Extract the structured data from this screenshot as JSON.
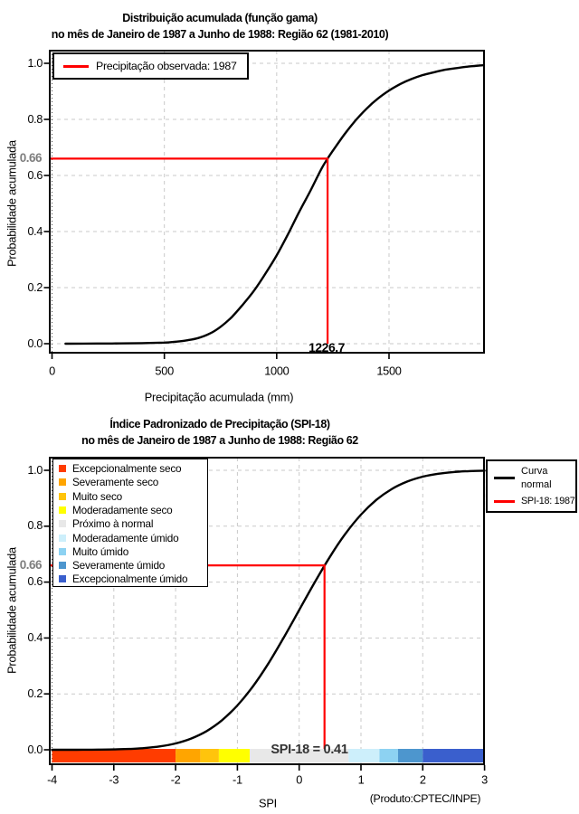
{
  "figure": {
    "credit": "(Produto:CPTEC/INPE)"
  },
  "chart_data": [
    {
      "type": "line",
      "title": "Distribuição acumulada (função gama)",
      "subtitle": "no mês de Janeiro de 1987 a Junho de 1988: Região 62 (1981-2010)",
      "xlabel": "Precipitação acumulada (mm)",
      "ylabel": "Probabilidade acumulada",
      "xlim": [
        0,
        1920
      ],
      "ylim": [
        0,
        1
      ],
      "x_ticks": [
        "0",
        "500",
        "1000",
        "1500"
      ],
      "x_tick_values": [
        0,
        500,
        1000,
        1500
      ],
      "y_ticks": [
        "0.0",
        "0.2",
        "0.4",
        "0.6",
        "0.8",
        "1.0"
      ],
      "y_tick_values": [
        0,
        0.2,
        0.4,
        0.6,
        0.8,
        1.0
      ],
      "grid": true,
      "legend_position": "top-left",
      "legend": [
        {
          "label": "Precipitação observada: 1987",
          "color": "#FF0000",
          "swatch": "line"
        }
      ],
      "series": [
        {
          "name": "Distribuição acumulada (função gama)",
          "color": "#000000",
          "points": [
            [
              60,
              0
            ],
            [
              200,
              0.0005
            ],
            [
              300,
              0.001
            ],
            [
              400,
              0.002
            ],
            [
              500,
              0.004
            ],
            [
              550,
              0.007
            ],
            [
              600,
              0.012
            ],
            [
              650,
              0.02
            ],
            [
              700,
              0.035
            ],
            [
              750,
              0.06
            ],
            [
              800,
              0.095
            ],
            [
              850,
              0.14
            ],
            [
              900,
              0.19
            ],
            [
              950,
              0.25
            ],
            [
              1000,
              0.315
            ],
            [
              1050,
              0.39
            ],
            [
              1100,
              0.47
            ],
            [
              1150,
              0.545
            ],
            [
              1200,
              0.625
            ],
            [
              1226.7,
              0.66
            ],
            [
              1250,
              0.688
            ],
            [
              1300,
              0.745
            ],
            [
              1350,
              0.795
            ],
            [
              1400,
              0.838
            ],
            [
              1450,
              0.874
            ],
            [
              1500,
              0.903
            ],
            [
              1550,
              0.926
            ],
            [
              1600,
              0.944
            ],
            [
              1650,
              0.958
            ],
            [
              1700,
              0.968
            ],
            [
              1750,
              0.977
            ],
            [
              1800,
              0.983
            ],
            [
              1850,
              0.988
            ],
            [
              1900,
              0.992
            ],
            [
              1918,
              0.993
            ]
          ]
        }
      ],
      "marker": {
        "x": 1226.7,
        "p": 0.66,
        "x_label": "1226.7",
        "p_label": "0.66",
        "color": "#FF0000"
      }
    },
    {
      "type": "line",
      "title": "Índice Padronizado de Precipitação (SPI-18)",
      "subtitle": "no mês de Janeiro de 1987 a Junho de 1988: Região 62",
      "xlabel": "SPI",
      "ylabel": "Probabilidade acumulada",
      "xlim": [
        -4,
        3
      ],
      "ylim": [
        0,
        1
      ],
      "x_ticks": [
        "-4",
        "-3",
        "-2",
        "-1",
        "0",
        "1",
        "2",
        "3"
      ],
      "x_tick_values": [
        -4,
        -3,
        -2,
        -1,
        0,
        1,
        2,
        3
      ],
      "y_ticks": [
        "0.0",
        "0.2",
        "0.4",
        "0.6",
        "0.8",
        "1.0"
      ],
      "y_tick_values": [
        0,
        0.2,
        0.4,
        0.6,
        0.8,
        1.0
      ],
      "grid": true,
      "legend_position": "top-right",
      "legend": [
        {
          "label": "Curva normal",
          "color": "#000000",
          "swatch": "line"
        },
        {
          "label": "SPI-18: 1987",
          "color": "#FF0000",
          "swatch": "line"
        }
      ],
      "series": [
        {
          "name": "Curva normal",
          "color": "#000000",
          "distribution": "standard normal CDF",
          "points": [
            [
              -4,
              0.0
            ],
            [
              -3.75,
              0.0001
            ],
            [
              -3.5,
              0.0002
            ],
            [
              -3.25,
              0.0006
            ],
            [
              -3,
              0.0013
            ],
            [
              -2.75,
              0.003
            ],
            [
              -2.5,
              0.0062
            ],
            [
              -2.25,
              0.0122
            ],
            [
              -2,
              0.0228
            ],
            [
              -1.75,
              0.0401
            ],
            [
              -1.5,
              0.0668
            ],
            [
              -1.25,
              0.1056
            ],
            [
              -1,
              0.1587
            ],
            [
              -0.75,
              0.2266
            ],
            [
              -0.5,
              0.3085
            ],
            [
              -0.25,
              0.4013
            ],
            [
              0,
              0.5
            ],
            [
              0.25,
              0.5987
            ],
            [
              0.5,
              0.6915
            ],
            [
              0.75,
              0.7734
            ],
            [
              1,
              0.8413
            ],
            [
              1.25,
              0.8944
            ],
            [
              1.5,
              0.9332
            ],
            [
              1.75,
              0.9599
            ],
            [
              2,
              0.9772
            ],
            [
              2.25,
              0.9878
            ],
            [
              2.5,
              0.9938
            ],
            [
              2.75,
              0.997
            ],
            [
              3,
              0.9987
            ]
          ]
        }
      ],
      "marker": {
        "x": 0.41,
        "p": 0.66,
        "label": "SPI-18 = 0.41",
        "p_label": "0.66",
        "color": "#FF0000"
      },
      "classes": [
        {
          "label": "Excepcionalmente seco",
          "color": "#FF3C00",
          "range": [
            -4,
            -2
          ]
        },
        {
          "label": "Severamente seco",
          "color": "#FFA500",
          "range": [
            -2,
            -1.6
          ]
        },
        {
          "label": "Muito seco",
          "color": "#FFC40C",
          "range": [
            -1.6,
            -1.3
          ]
        },
        {
          "label": "Moderadamente seco",
          "color": "#FFFF00",
          "range": [
            -1.3,
            -0.8
          ]
        },
        {
          "label": "Próximo à normal",
          "color": "#E8E8E8",
          "range": [
            -0.8,
            0.8
          ]
        },
        {
          "label": "Moderadamente úmido",
          "color": "#CDEFFB",
          "range": [
            0.8,
            1.3
          ]
        },
        {
          "label": "Muito úmido",
          "color": "#8DD2F2",
          "range": [
            1.3,
            1.6
          ]
        },
        {
          "label": "Severamente úmido",
          "color": "#4D96CE",
          "range": [
            1.6,
            2
          ]
        },
        {
          "label": "Excepcionalmente úmido",
          "color": "#3A5FCD",
          "range": [
            2,
            3
          ]
        }
      ]
    }
  ]
}
